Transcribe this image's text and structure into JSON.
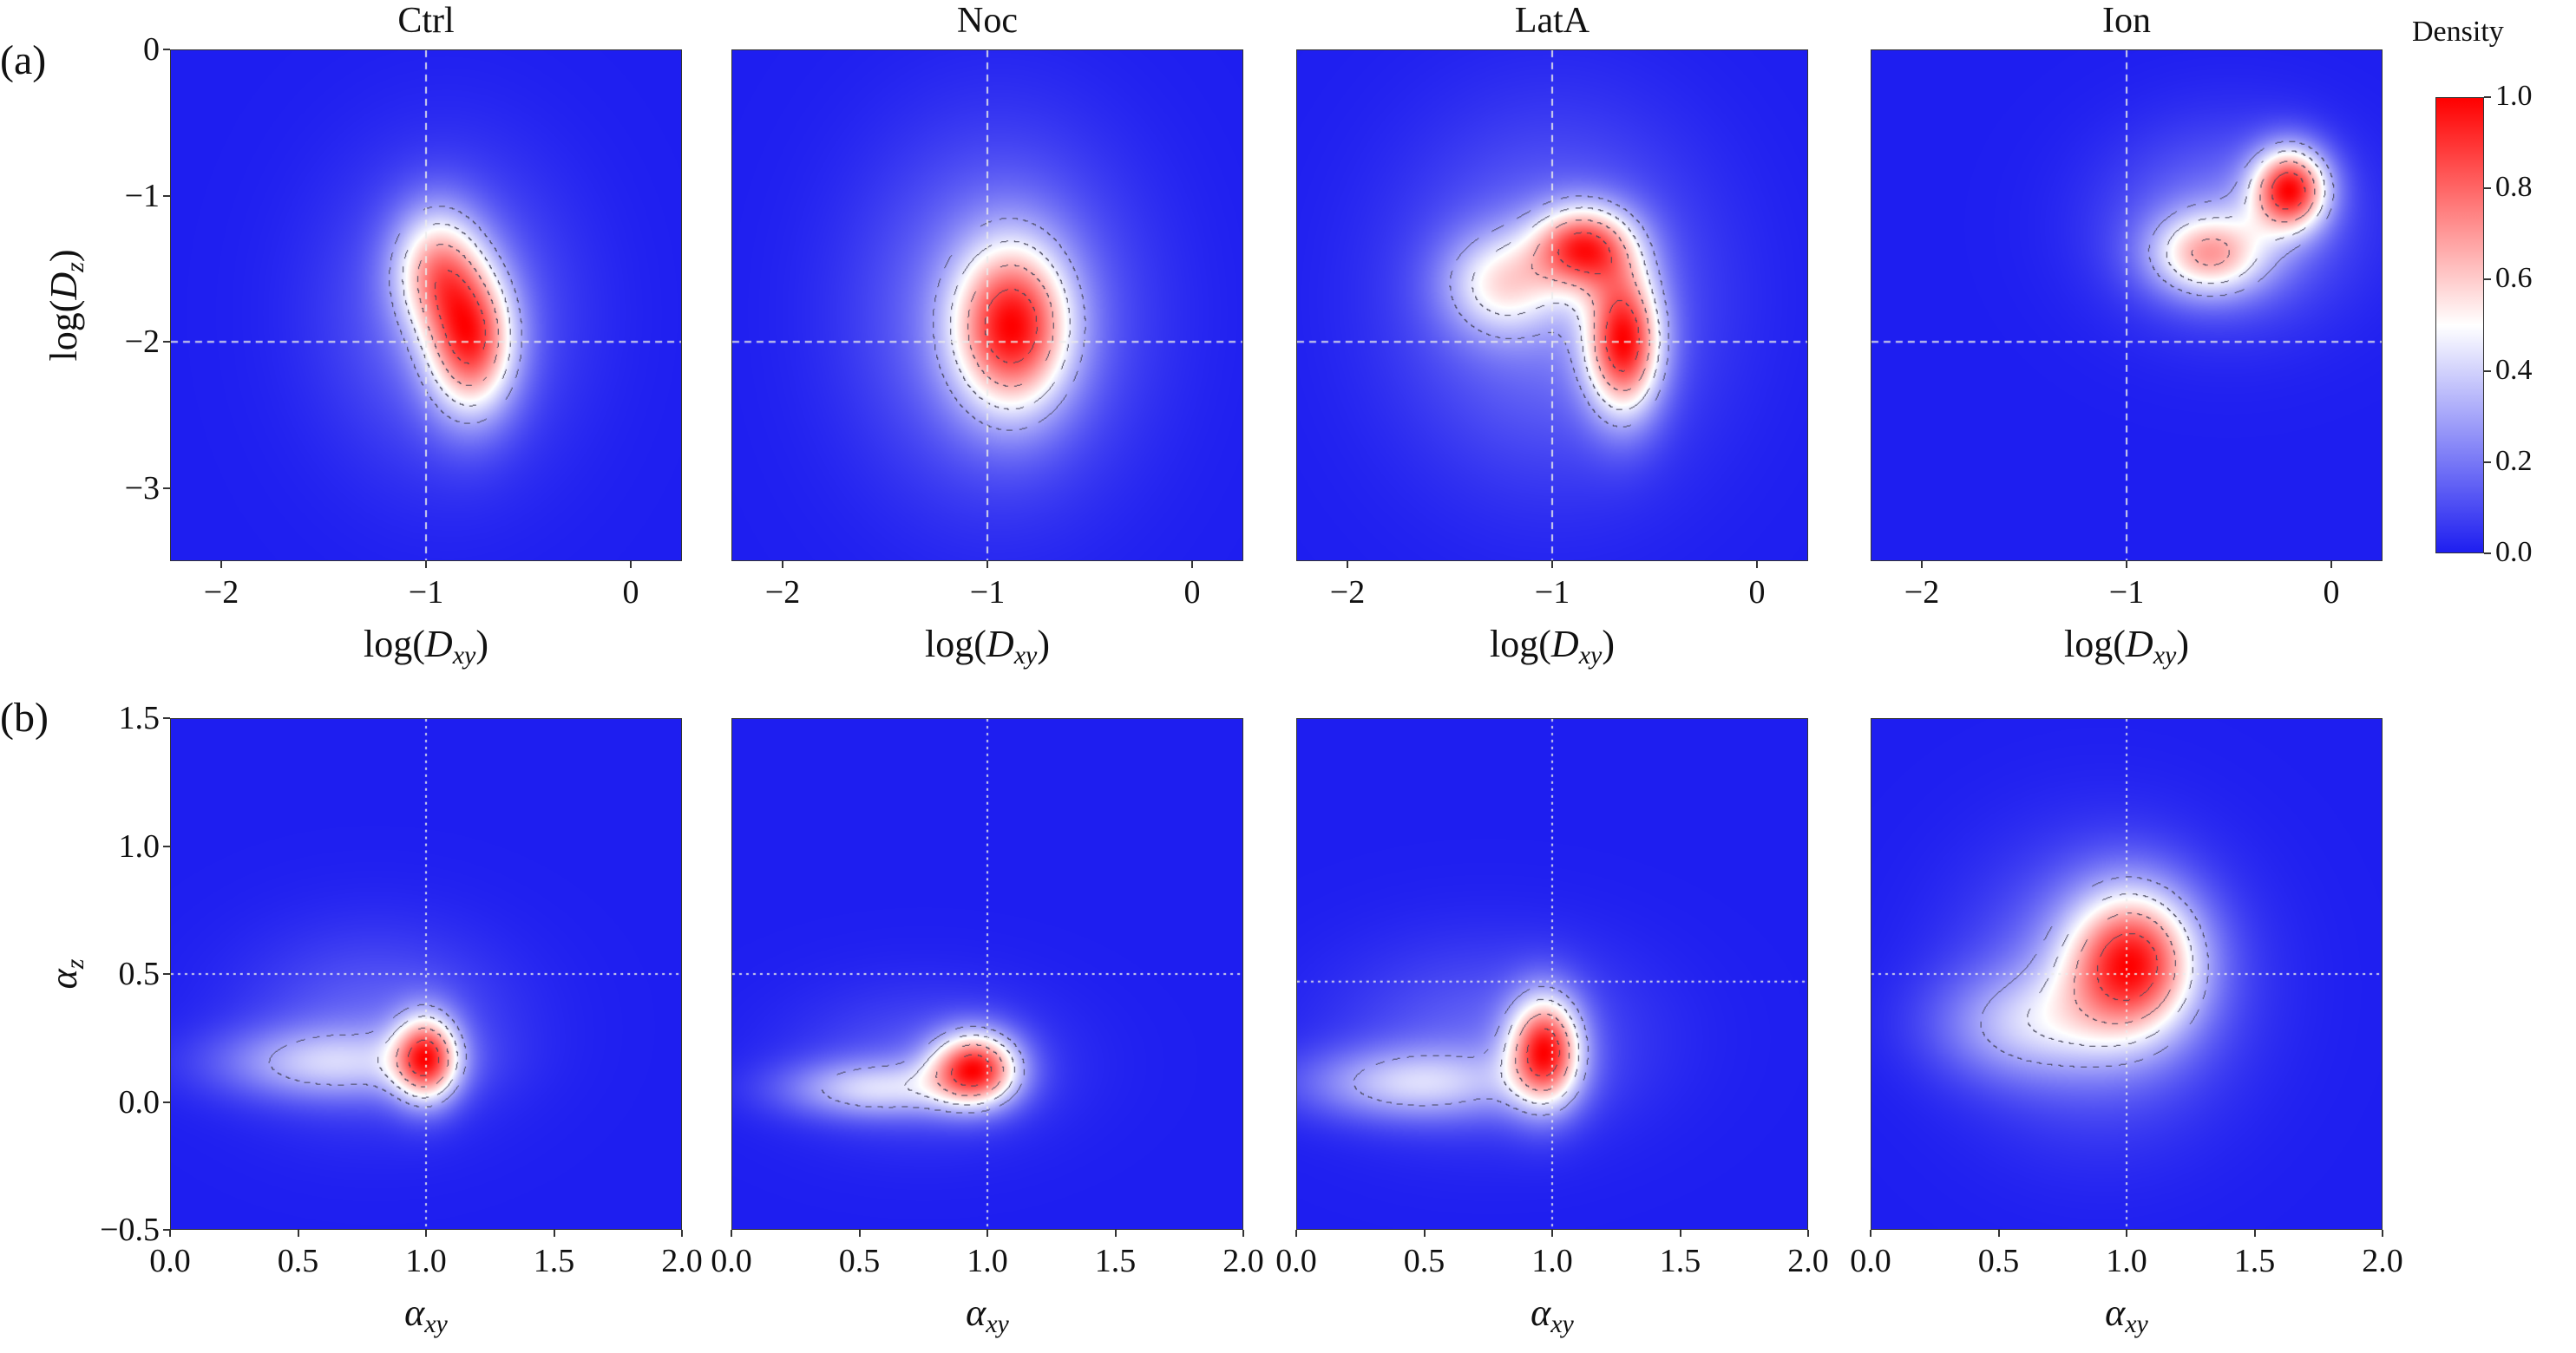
{
  "row_labels": [
    "(a)",
    "(b)"
  ],
  "colorbar": {
    "title": "Density",
    "ticks": [
      "0.0",
      "0.2",
      "0.4",
      "0.6",
      "0.8",
      "1.0"
    ],
    "range": [
      0,
      1
    ],
    "colormap": "bwr",
    "low_color": "#1e1ef0",
    "mid_color": "#ffffff",
    "high_color": "#ff0000"
  },
  "chart_data": [
    {
      "type": "heatmap",
      "row": "(a)",
      "title": "Ctrl",
      "xlabel": {
        "prefix": "log(",
        "var": "D",
        "sub": "xy",
        "suffix": ")"
      },
      "ylabel": {
        "prefix": "log(",
        "var": "D",
        "sub": "z",
        "suffix": ")"
      },
      "xlim": [
        -2.25,
        0.25
      ],
      "ylim": [
        -3.5,
        0
      ],
      "xticks": [
        "−2",
        "−1",
        "0"
      ],
      "xtick_values": [
        -2,
        -1,
        0
      ],
      "yticks": [
        "0",
        "−1",
        "−2",
        "−3"
      ],
      "ytick_values": [
        0,
        -1,
        -2,
        -3
      ],
      "ref_lines": {
        "x": -1,
        "y": -2
      },
      "components": [
        {
          "x": -0.78,
          "y": -2.0,
          "sx": 0.15,
          "sy": 0.35,
          "w": 1
        },
        {
          "x": -0.95,
          "y": -1.5,
          "sx": 0.15,
          "sy": 0.3,
          "w": 0.7
        },
        {
          "x": -0.9,
          "y": -1.8,
          "sx": 0.4,
          "sy": 0.7,
          "w": 0.25
        }
      ]
    },
    {
      "type": "heatmap",
      "row": "(a)",
      "title": "Noc",
      "xlabel": {
        "prefix": "log(",
        "var": "D",
        "sub": "xy",
        "suffix": ")"
      },
      "xlim": [
        -2.25,
        0.25
      ],
      "ylim": [
        -3.5,
        0
      ],
      "xticks": [
        "−2",
        "−1",
        "0"
      ],
      "xtick_values": [
        -2,
        -1,
        0
      ],
      "ref_lines": {
        "x": -1,
        "y": -2
      },
      "components": [
        {
          "x": -0.88,
          "y": -1.9,
          "sx": 0.2,
          "sy": 0.4,
          "w": 1
        },
        {
          "x": -0.95,
          "y": -1.8,
          "sx": 0.45,
          "sy": 0.8,
          "w": 0.3
        }
      ]
    },
    {
      "type": "heatmap",
      "row": "(a)",
      "title": "LatA",
      "xlabel": {
        "prefix": "log(",
        "var": "D",
        "sub": "xy",
        "suffix": ")"
      },
      "xlim": [
        -2.25,
        0.25
      ],
      "ylim": [
        -3.5,
        0
      ],
      "xticks": [
        "−2",
        "−1",
        "0"
      ],
      "xtick_values": [
        -2,
        -1,
        0
      ],
      "ref_lines": {
        "x": -1,
        "y": -2
      },
      "components": [
        {
          "x": -0.65,
          "y": -2.0,
          "sx": 0.13,
          "sy": 0.35,
          "w": 1
        },
        {
          "x": -0.85,
          "y": -1.35,
          "sx": 0.17,
          "sy": 0.2,
          "w": 0.85
        },
        {
          "x": -1.25,
          "y": -1.6,
          "sx": 0.2,
          "sy": 0.25,
          "w": 0.45
        },
        {
          "x": -1.0,
          "y": -1.7,
          "sx": 0.5,
          "sy": 0.8,
          "w": 0.25
        }
      ]
    },
    {
      "type": "heatmap",
      "row": "(a)",
      "title": "Ion",
      "xlabel": {
        "prefix": "log(",
        "var": "D",
        "sub": "xy",
        "suffix": ")"
      },
      "xlim": [
        -2.25,
        0.25
      ],
      "ylim": [
        -3.5,
        0
      ],
      "xticks": [
        "−2",
        "−1",
        "0"
      ],
      "xtick_values": [
        -2,
        -1,
        0
      ],
      "ref_lines": {
        "x": -1,
        "y": -2
      },
      "components": [
        {
          "x": -0.2,
          "y": -0.95,
          "sx": 0.13,
          "sy": 0.2,
          "w": 1
        },
        {
          "x": -0.6,
          "y": -1.4,
          "sx": 0.2,
          "sy": 0.2,
          "w": 0.6
        },
        {
          "x": -0.5,
          "y": -1.2,
          "sx": 0.4,
          "sy": 0.45,
          "w": 0.25
        }
      ]
    },
    {
      "type": "heatmap",
      "row": "(b)",
      "xlabel": {
        "prefix": "",
        "var": "α",
        "sub": "xy",
        "suffix": ""
      },
      "ylabel": {
        "prefix": "",
        "var": "α",
        "sub": "z",
        "suffix": ""
      },
      "xlim": [
        0,
        2.0
      ],
      "ylim": [
        -0.5,
        1.5
      ],
      "xticks": [
        "0.0",
        "0.5",
        "1.0",
        "1.5",
        "2.0"
      ],
      "xtick_values": [
        0,
        0.5,
        1,
        1.5,
        2
      ],
      "yticks": [
        "1.5",
        "1.0",
        "0.5",
        "0.0",
        "−0.5"
      ],
      "ytick_values": [
        1.5,
        1,
        0.5,
        0,
        -0.5
      ],
      "ref_lines": {
        "x": 1,
        "y": 0.5
      },
      "components": [
        {
          "x": 1.0,
          "y": 0.17,
          "sx": 0.09,
          "sy": 0.12,
          "w": 1
        },
        {
          "x": 0.6,
          "y": 0.15,
          "sx": 0.3,
          "sy": 0.1,
          "w": 0.4
        },
        {
          "x": 0.8,
          "y": 0.3,
          "sx": 0.35,
          "sy": 0.25,
          "w": 0.2
        }
      ]
    },
    {
      "type": "heatmap",
      "row": "(b)",
      "xlabel": {
        "prefix": "",
        "var": "α",
        "sub": "xy",
        "suffix": ""
      },
      "xlim": [
        0,
        2.0
      ],
      "ylim": [
        -0.5,
        1.5
      ],
      "xticks": [
        "0.0",
        "0.5",
        "1.0",
        "1.5",
        "2.0"
      ],
      "xtick_values": [
        0,
        0.5,
        1,
        1.5,
        2
      ],
      "ref_lines": {
        "x": 1,
        "y": 0.5
      },
      "components": [
        {
          "x": 0.95,
          "y": 0.13,
          "sx": 0.12,
          "sy": 0.1,
          "w": 1
        },
        {
          "x": 0.55,
          "y": 0.05,
          "sx": 0.25,
          "sy": 0.08,
          "w": 0.4
        },
        {
          "x": 0.75,
          "y": 0.15,
          "sx": 0.35,
          "sy": 0.2,
          "w": 0.15
        }
      ]
    },
    {
      "type": "heatmap",
      "row": "(b)",
      "xlabel": {
        "prefix": "",
        "var": "α",
        "sub": "xy",
        "suffix": ""
      },
      "xlim": [
        0,
        2.0
      ],
      "ylim": [
        -0.5,
        1.5
      ],
      "xticks": [
        "0.0",
        "0.5",
        "1.0",
        "1.5",
        "2.0"
      ],
      "xtick_values": [
        0,
        0.5,
        1,
        1.5,
        2
      ],
      "ref_lines": {
        "x": 1,
        "y": 0.47
      },
      "components": [
        {
          "x": 0.97,
          "y": 0.2,
          "sx": 0.1,
          "sy": 0.15,
          "w": 1
        },
        {
          "x": 0.45,
          "y": 0.07,
          "sx": 0.3,
          "sy": 0.1,
          "w": 0.4
        },
        {
          "x": 0.75,
          "y": 0.25,
          "sx": 0.4,
          "sy": 0.25,
          "w": 0.18
        }
      ]
    },
    {
      "type": "heatmap",
      "row": "(b)",
      "xlabel": {
        "prefix": "",
        "var": "α",
        "sub": "xy",
        "suffix": ""
      },
      "xlim": [
        0,
        2.0
      ],
      "ylim": [
        -0.5,
        1.5
      ],
      "xticks": [
        "0.0",
        "0.5",
        "1.0",
        "1.5",
        "2.0"
      ],
      "xtick_values": [
        0,
        0.5,
        1,
        1.5,
        2
      ],
      "ref_lines": {
        "x": 1,
        "y": 0.5
      },
      "components": [
        {
          "x": 1.02,
          "y": 0.55,
          "sx": 0.18,
          "sy": 0.2,
          "w": 1
        },
        {
          "x": 0.6,
          "y": 0.3,
          "sx": 0.25,
          "sy": 0.15,
          "w": 0.35
        },
        {
          "x": 0.9,
          "y": 0.45,
          "sx": 0.35,
          "sy": 0.35,
          "w": 0.3
        }
      ]
    }
  ]
}
